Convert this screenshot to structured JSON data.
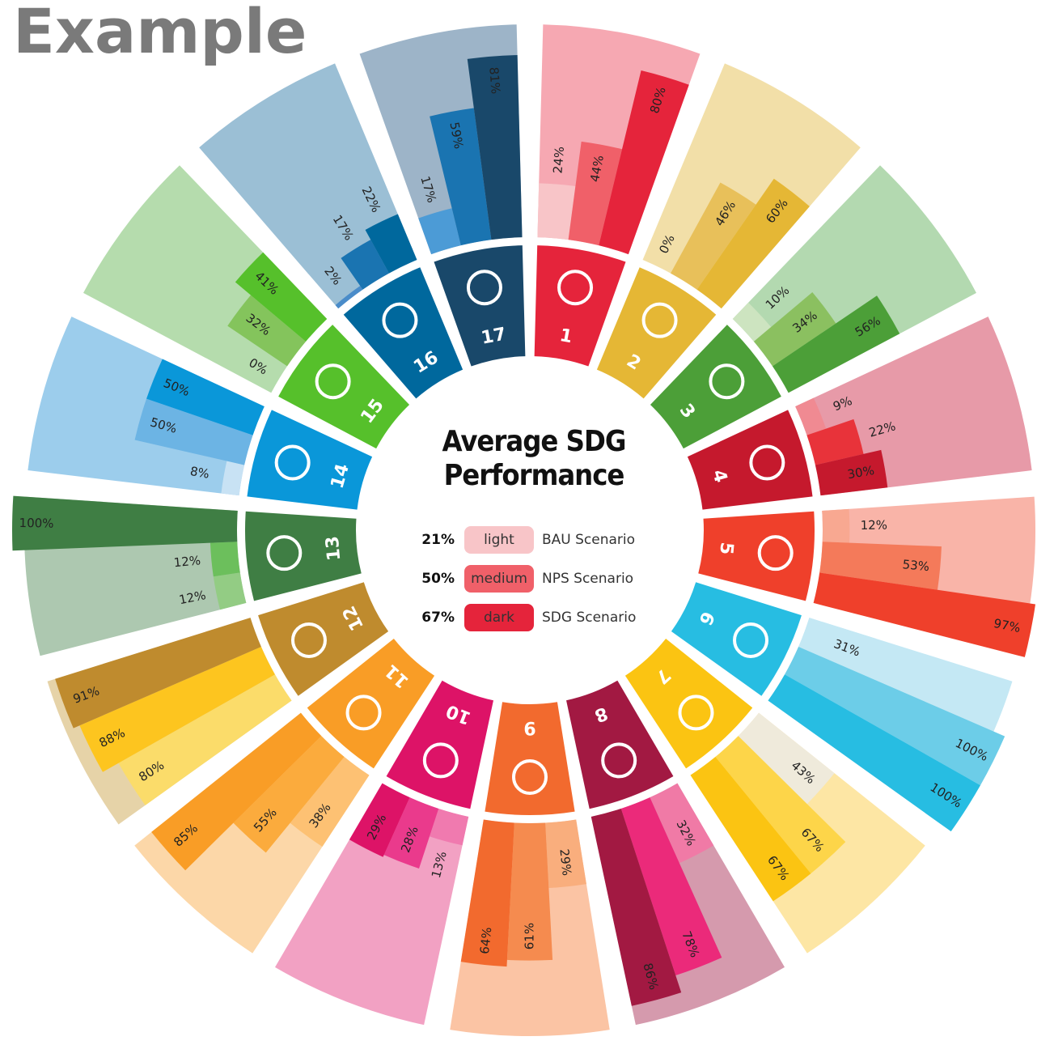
{
  "heading": "Example",
  "chart_data": {
    "type": "radial_bar",
    "title": "Average SDG Performance",
    "categories": [
      "1",
      "2",
      "3",
      "4",
      "5",
      "6",
      "7",
      "8",
      "9",
      "10",
      "11",
      "12",
      "13",
      "14",
      "15",
      "16",
      "17"
    ],
    "ylim": [
      0,
      100
    ],
    "background_colors": [
      "#f6a8b2",
      "#f2dfa8",
      "#b3d9b0",
      "#e79aa8",
      "#f9b4a8",
      "#c4e8f4",
      "#fde6a4",
      "#d59aad",
      "#fbc4a4",
      "#f2a1c3",
      "#fcd7a8",
      "#e6d3a8",
      "#adc8b0",
      "#9ccdec",
      "#b5dcad",
      "#9bbfd5",
      "#9db4c8"
    ],
    "series": [
      {
        "name": "light",
        "scenario": "BAU Scenario",
        "average": 21,
        "average_label": "21%",
        "values": [
          24,
          0,
          10,
          9,
          12,
          31,
          43,
          32,
          29,
          13,
          38,
          80,
          12,
          8,
          0,
          2,
          17
        ],
        "value_labels": [
          "24%",
          "0%",
          "10%",
          "9%",
          "12%",
          "31%",
          "43%",
          "32%",
          "29%",
          "13%",
          "38%",
          "80%",
          "12%",
          "8%",
          "0%",
          "2%",
          "17%"
        ],
        "colors": [
          "#f8c5c8",
          "#f0d48a",
          "#cde4c0",
          "#f08a92",
          "#f8a891",
          "#c4e8f4",
          "#efeadb",
          "#f07aa6",
          "#f9ae7d",
          "#f07aaf",
          "#fdc173",
          "#fbdc6a",
          "#93cc84",
          "#c8e2f4",
          "#c8e0b8",
          "#4a8cc9",
          "#4c9bd6"
        ]
      },
      {
        "name": "medium",
        "scenario": "NPS Scenario",
        "average": 50,
        "average_label": "50%",
        "values": [
          44,
          46,
          34,
          22,
          53,
          100,
          67,
          78,
          61,
          28,
          55,
          88,
          12,
          50,
          32,
          17,
          59
        ],
        "value_labels": [
          "44%",
          "46%",
          "34%",
          "22%",
          "53%",
          "100%",
          "67%",
          "78%",
          "61%",
          "28%",
          "55%",
          "88%",
          "12%",
          "50%",
          "32%",
          "17%",
          "59%"
        ],
        "colors": [
          "#f06069",
          "#e8c05a",
          "#8bc060",
          "#e8333a",
          "#f47a5a",
          "#6ccde8",
          "#fdd549",
          "#eb2a7a",
          "#f58b4f",
          "#ea3a8c",
          "#fbab3d",
          "#fdc51f",
          "#6cbf5c",
          "#6cb4e4",
          "#84c45c",
          "#1a74b1",
          "#1a74b1"
        ]
      },
      {
        "name": "dark",
        "scenario": "SDG Scenario",
        "average": 67,
        "average_label": "67%",
        "values": [
          80,
          60,
          56,
          30,
          97,
          100,
          67,
          86,
          64,
          29,
          85,
          91,
          100,
          50,
          41,
          22,
          81
        ],
        "value_labels": [
          "80%",
          "60%",
          "56%",
          "30%",
          "97%",
          "100%",
          "67%",
          "86%",
          "64%",
          "29%",
          "85%",
          "91%",
          "100%",
          "50%",
          "41%",
          "22%",
          "81%"
        ],
        "colors": [
          "#e5243b",
          "#e5b735",
          "#4c9f38",
          "#c5192d",
          "#ef402b",
          "#27bde2",
          "#fbc412",
          "#a21942",
          "#f26a2e",
          "#dd1367",
          "#f99d26",
          "#bf8b2e",
          "#3f7e44",
          "#0a97d9",
          "#56c02b",
          "#00689d",
          "#19486a"
        ]
      }
    ]
  }
}
